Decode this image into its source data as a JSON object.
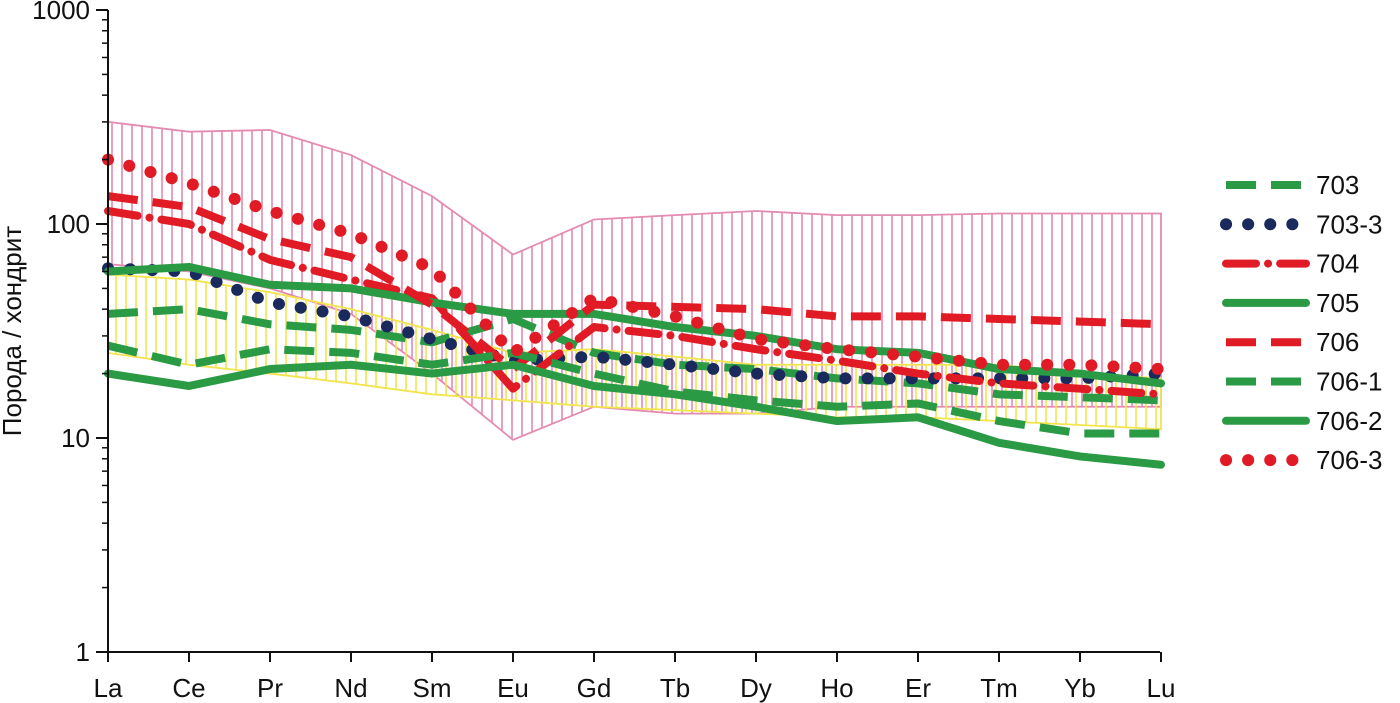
{
  "chart_data": {
    "type": "line",
    "yscale": "log",
    "ylim": [
      1,
      1000
    ],
    "ylabel": "Порода / хондрит",
    "xlabel": "",
    "title": "",
    "categories": [
      "La",
      "Ce",
      "Pr",
      "Nd",
      "Sm",
      "Eu",
      "Gd",
      "Tb",
      "Dy",
      "Ho",
      "Er",
      "Tm",
      "Yb",
      "Lu"
    ],
    "yticks": [
      {
        "value": 1,
        "label": "1"
      },
      {
        "value": 10,
        "label": "10"
      },
      {
        "value": 100,
        "label": "100"
      },
      {
        "value": 1000,
        "label": "1000"
      }
    ],
    "grid": false,
    "legend_position": "right",
    "fields": [
      {
        "fill": "#e38bb0",
        "upper": [
          300,
          270,
          275,
          210,
          135,
          72,
          105,
          110,
          115,
          110,
          110,
          112,
          112,
          112
        ],
        "lower": [
          65,
          60,
          50,
          38,
          20,
          9.8,
          14,
          13,
          13,
          14,
          14,
          14,
          14,
          14
        ]
      },
      {
        "fill": "#f2e44c",
        "upper": [
          58,
          55,
          48,
          40,
          32,
          25,
          26,
          24,
          22,
          22,
          22,
          22,
          20,
          19
        ],
        "lower": [
          25,
          22,
          20,
          18,
          16,
          15,
          14,
          13.5,
          13,
          12.5,
          12.5,
          12,
          11.5,
          11
        ]
      }
    ],
    "series": [
      {
        "name": "703",
        "color": "#2a9a45",
        "style": "dashed",
        "values": [
          38,
          40,
          34,
          32,
          28,
          36,
          25,
          22,
          21,
          19,
          18,
          16,
          15.5,
          15
        ]
      },
      {
        "name": "703-3",
        "color": "#1b2a5c",
        "style": "dotted",
        "values": [
          62,
          60,
          43,
          37,
          29,
          23,
          24,
          22,
          20,
          19,
          19,
          19,
          19,
          20
        ]
      },
      {
        "name": "704",
        "color": "#e11b25",
        "style": "dashdot",
        "values": [
          115,
          100,
          68,
          55,
          45,
          17,
          33,
          30,
          26,
          23,
          20,
          18,
          17,
          16
        ]
      },
      {
        "name": "705",
        "color": "#2a9a45",
        "style": "solid",
        "values": [
          60,
          63,
          52,
          50,
          43,
          38,
          38,
          33,
          30,
          26,
          25,
          21,
          20,
          18
        ]
      },
      {
        "name": "706",
        "color": "#e11b25",
        "style": "dashed",
        "values": [
          135,
          120,
          85,
          70,
          42,
          21,
          42,
          41,
          40,
          37,
          37,
          36,
          35,
          34
        ]
      },
      {
        "name": "706-1",
        "color": "#2a9a45",
        "style": "dashed",
        "values": [
          27,
          22,
          26,
          25,
          22,
          25,
          20,
          16.5,
          15,
          14,
          14.5,
          12,
          10.5,
          10.5
        ]
      },
      {
        "name": "706-2",
        "color": "#2a9a45",
        "style": "solid",
        "values": [
          20,
          17.5,
          21,
          22,
          20,
          22,
          17.5,
          16,
          14,
          12,
          12.5,
          9.5,
          8.2,
          7.5
        ]
      },
      {
        "name": "706-3",
        "color": "#e11b25",
        "style": "dotted",
        "values": [
          200,
          155,
          115,
          90,
          62,
          25,
          45,
          37,
          29,
          26,
          24,
          22,
          22,
          21
        ]
      }
    ]
  }
}
